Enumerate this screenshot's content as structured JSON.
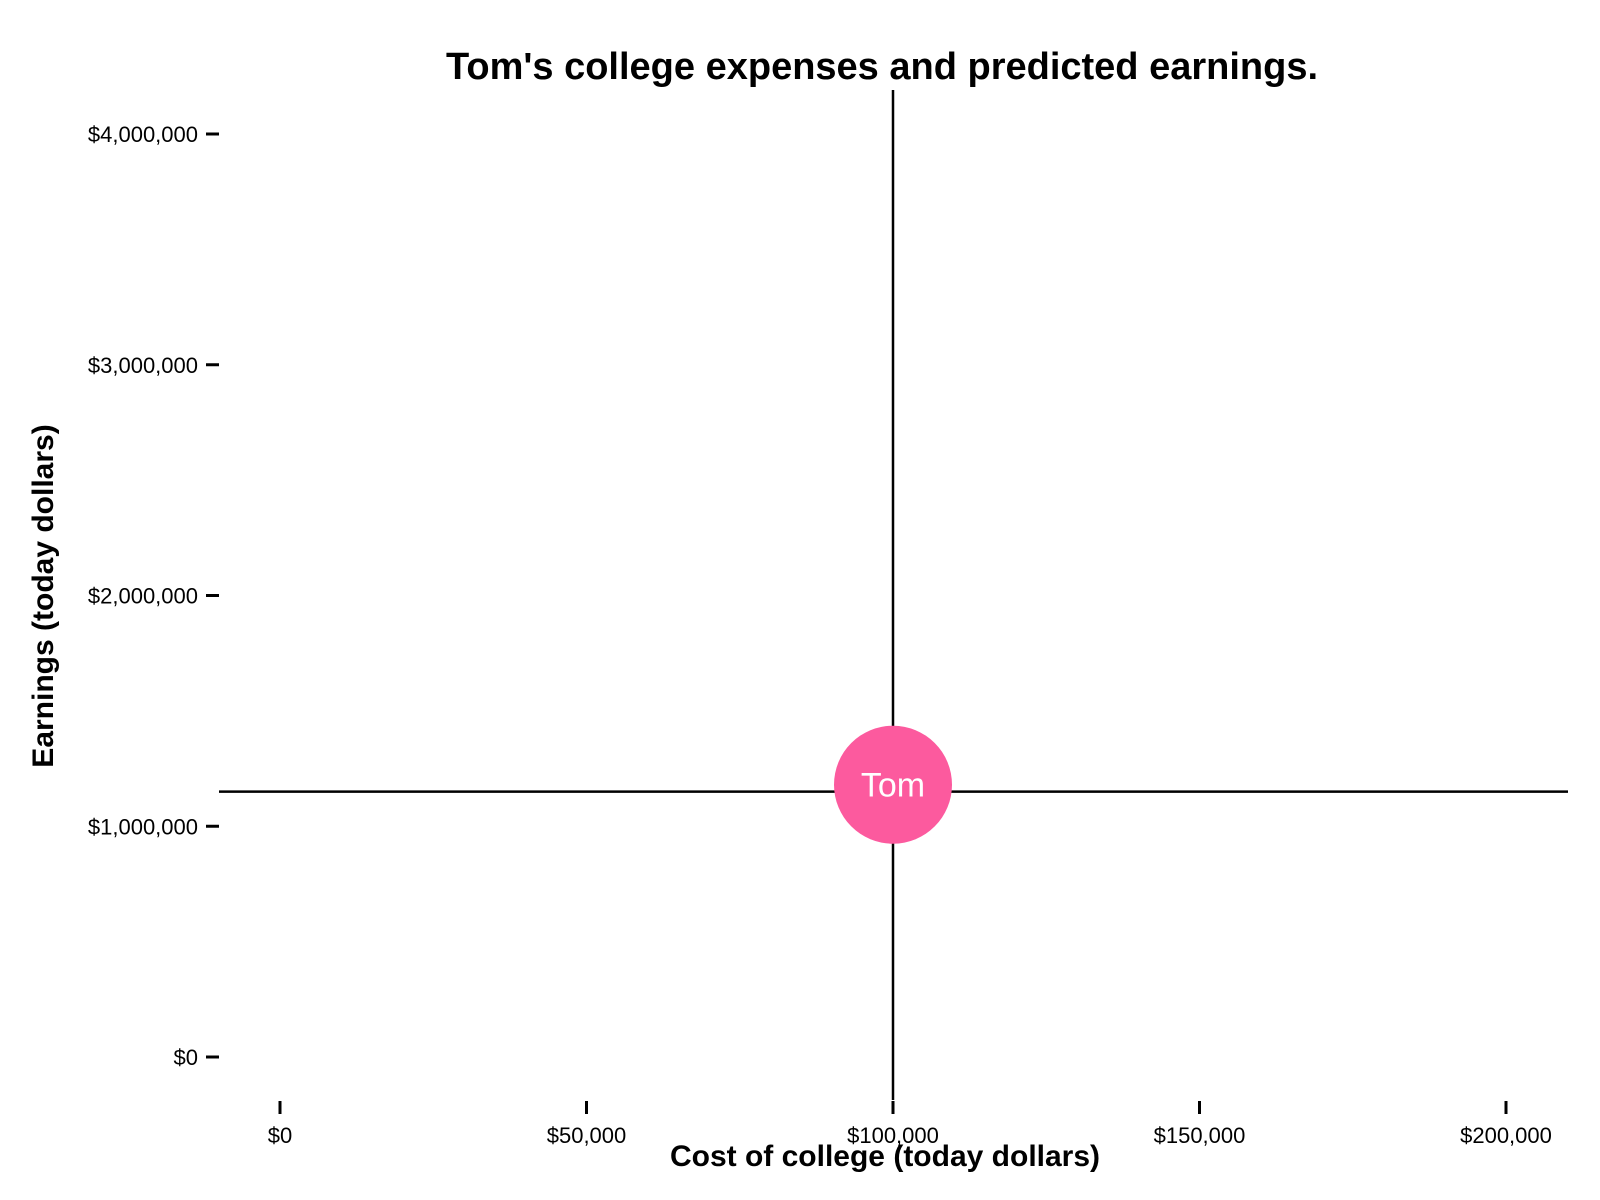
{
  "chart_data": {
    "type": "scatter",
    "title": "Tom's college expenses and predicted earnings.",
    "xlabel": "Cost of college (today dollars)",
    "ylabel": "Earnings (today dollars)",
    "xlim": [
      -10000,
      210000
    ],
    "ylim": [
      -200000,
      4200000
    ],
    "x_ticks": [
      {
        "value": 0,
        "label": "$0"
      },
      {
        "value": 50000,
        "label": "$50,000"
      },
      {
        "value": 100000,
        "label": "$100,000"
      },
      {
        "value": 150000,
        "label": "$150,000"
      },
      {
        "value": 200000,
        "label": "$200,000"
      }
    ],
    "y_ticks": [
      {
        "value": 0,
        "label": "$0"
      },
      {
        "value": 1000000,
        "label": "$1,000,000"
      },
      {
        "value": 2000000,
        "label": "$2,000,000"
      },
      {
        "value": 3000000,
        "label": "$3,000,000"
      },
      {
        "value": 4000000,
        "label": "$4,000,000"
      }
    ],
    "points": [
      {
        "label": "Tom",
        "x": 100000,
        "y": 1180000,
        "color": "#fc5a9e"
      }
    ],
    "reference_lines": {
      "vertical_x": 100000,
      "horizontal_y": 1150000
    },
    "grid": false,
    "legend": "none"
  }
}
